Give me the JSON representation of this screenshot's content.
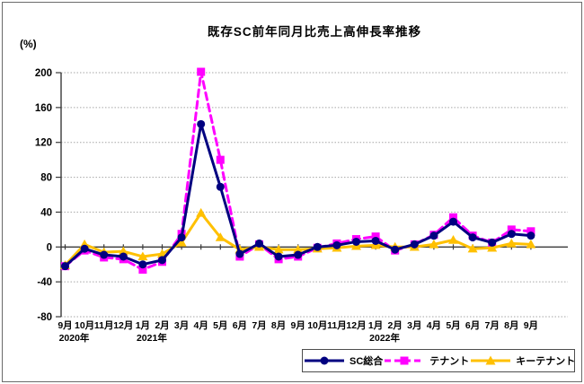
{
  "chart_data": {
    "type": "line",
    "title": "既存SC前年同月比売上高伸長率推移",
    "y_unit_label": "(%)",
    "ylim": [
      -80,
      200
    ],
    "yticks": [
      200,
      160,
      120,
      80,
      40,
      0,
      -40,
      -80
    ],
    "grid": true,
    "legend_position": "bottom-right",
    "categories": [
      "9月",
      "10月",
      "11月",
      "12月",
      "1月",
      "2月",
      "3月",
      "4月",
      "5月",
      "6月",
      "7月",
      "8月",
      "9月",
      "10月",
      "11月",
      "12月",
      "1月",
      "2月",
      "3月",
      "4月",
      "5月",
      "6月",
      "7月",
      "8月",
      "9月"
    ],
    "year_labels": [
      {
        "index": 0,
        "label": "2020年"
      },
      {
        "index": 4,
        "label": "2021年"
      },
      {
        "index": 16,
        "label": "2022年"
      }
    ],
    "series": [
      {
        "name": "SC総合",
        "color": "#000080",
        "line_style": "solid",
        "marker": "circle",
        "values": [
          -22,
          -2,
          -9,
          -11,
          -20,
          -15,
          11,
          141,
          69,
          -8,
          4,
          -11,
          -9,
          0,
          2,
          6,
          7,
          -3,
          3,
          13,
          29,
          11,
          5,
          15,
          13
        ]
      },
      {
        "name": "テナント",
        "color": "#FF00FF",
        "line_style": "dashed",
        "marker": "square",
        "values": [
          -22,
          -4,
          -12,
          -14,
          -26,
          -17,
          15,
          201,
          100,
          -11,
          3,
          -14,
          -11,
          -1,
          4,
          9,
          12,
          -4,
          3,
          14,
          34,
          13,
          5,
          20,
          18
        ]
      },
      {
        "name": "キーテナント",
        "color": "#FFC000",
        "line_style": "solid",
        "marker": "triangle",
        "values": [
          -21,
          3,
          -6,
          -5,
          -11,
          -8,
          5,
          39,
          11,
          -3,
          0,
          -3,
          -3,
          -2,
          -1,
          1,
          2,
          0,
          0,
          3,
          8,
          -2,
          -1,
          4,
          3
        ]
      }
    ]
  }
}
